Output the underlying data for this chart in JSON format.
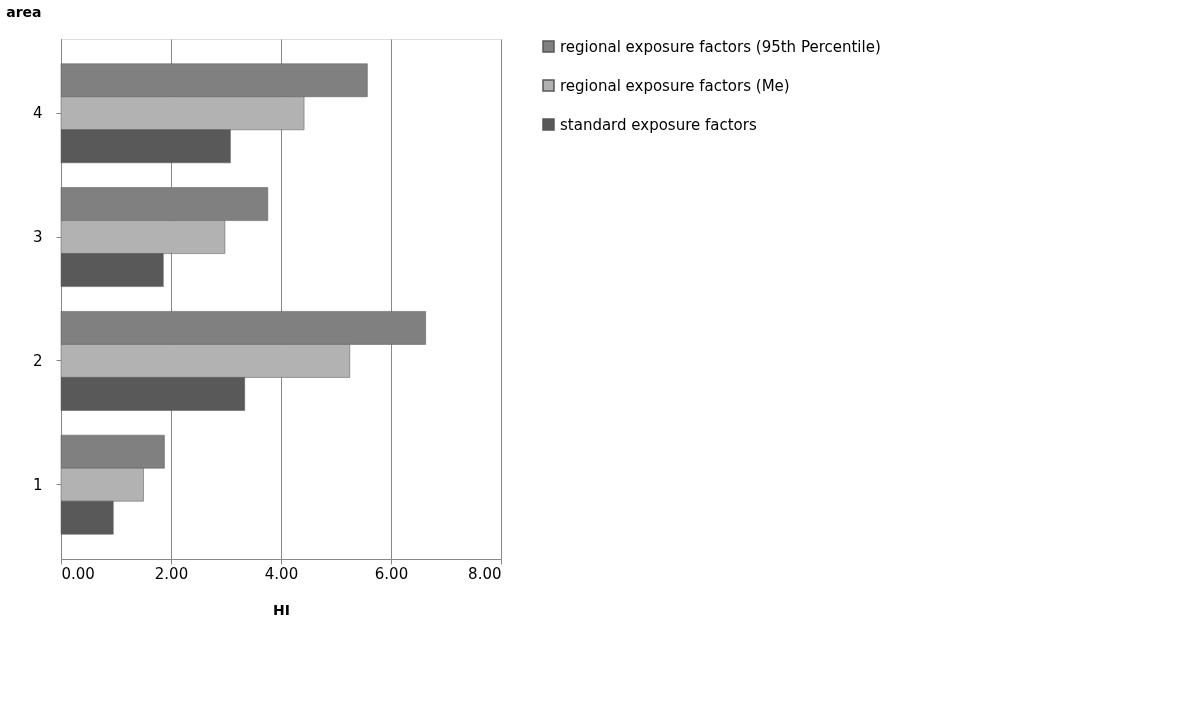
{
  "chart_data": {
    "type": "bar",
    "orientation": "horizontal",
    "xlabel": "HI",
    "ylabel": "area",
    "categories": [
      "4",
      "3",
      "2",
      "1"
    ],
    "series": [
      {
        "name": "regional exposure factors (95th Percentile)",
        "color": "#808080",
        "values": [
          5.57,
          3.76,
          6.63,
          1.88
        ]
      },
      {
        "name": "regional exposure factors (Me)",
        "color": "#b2b2b2",
        "values": [
          4.42,
          2.98,
          5.25,
          1.5
        ]
      },
      {
        "name": "standard exposure factors",
        "color": "#595959",
        "values": [
          3.08,
          1.86,
          3.34,
          0.95
        ]
      }
    ],
    "xlim": [
      0,
      8
    ],
    "xticks": [
      {
        "value": 0,
        "label": "0.00"
      },
      {
        "value": 2,
        "label": "2.00"
      },
      {
        "value": 4,
        "label": "4.00"
      },
      {
        "value": 6,
        "label": "6.00"
      },
      {
        "value": 8,
        "label": "8.00"
      }
    ],
    "grid": "x",
    "legend": "right"
  }
}
